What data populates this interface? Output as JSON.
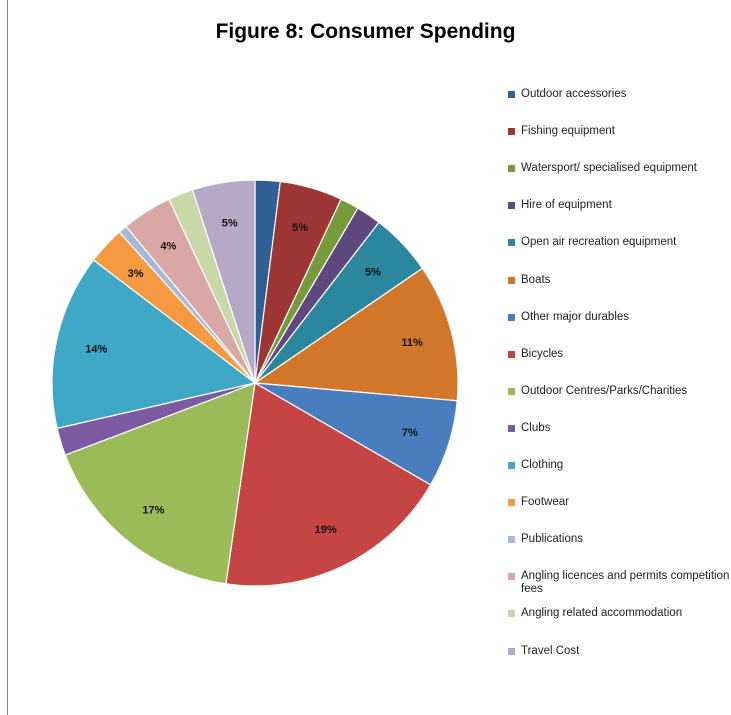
{
  "chart_data": {
    "type": "pie",
    "title": "Figure 8: Consumer Spending",
    "legend_position": "right",
    "slices": [
      {
        "label": "Outdoor accessories",
        "value": 2,
        "data_label": "",
        "color": "#2f5f93"
      },
      {
        "label": "Fishing equipment",
        "value": 5,
        "data_label": "5%",
        "color": "#9e3636"
      },
      {
        "label": "Watersport/ specialised equipment",
        "value": 1.5,
        "data_label": "",
        "color": "#779a3b"
      },
      {
        "label": "Hire of equipment",
        "value": 2,
        "data_label": "",
        "color": "#5e487e"
      },
      {
        "label": "Open air recreation equipment",
        "value": 5,
        "data_label": "5%",
        "color": "#2b879d"
      },
      {
        "label": "Boats",
        "value": 11,
        "data_label": "11%",
        "color": "#d2772a"
      },
      {
        "label": "Other major durables",
        "value": 7,
        "data_label": "7%",
        "color": "#4a7dbe"
      },
      {
        "label": "Bicycles",
        "value": 19,
        "data_label": "19%",
        "color": "#c44543"
      },
      {
        "label": "Outdoor Centres/Parks/Charities",
        "value": 17,
        "data_label": "17%",
        "color": "#9bbb59"
      },
      {
        "label": "Clubs",
        "value": 2.2,
        "data_label": "",
        "color": "#7c5ba2"
      },
      {
        "label": "Clothing",
        "value": 14,
        "data_label": "14%",
        "color": "#3ea8c6"
      },
      {
        "label": "Footwear",
        "value": 3,
        "data_label": "3%",
        "color": "#f59a42"
      },
      {
        "label": "Publications",
        "value": 0.7,
        "data_label": "",
        "color": "#a6b9da"
      },
      {
        "label": "Angling licences and permits competition fees",
        "value": 4,
        "data_label": "4%",
        "color": "#d9a8a6"
      },
      {
        "label": "Angling related accommodation",
        "value": 2,
        "data_label": "",
        "color": "#c8d8a8"
      },
      {
        "label": "Travel Cost",
        "value": 5,
        "data_label": "5%",
        "color": "#b6a9c8"
      }
    ]
  }
}
